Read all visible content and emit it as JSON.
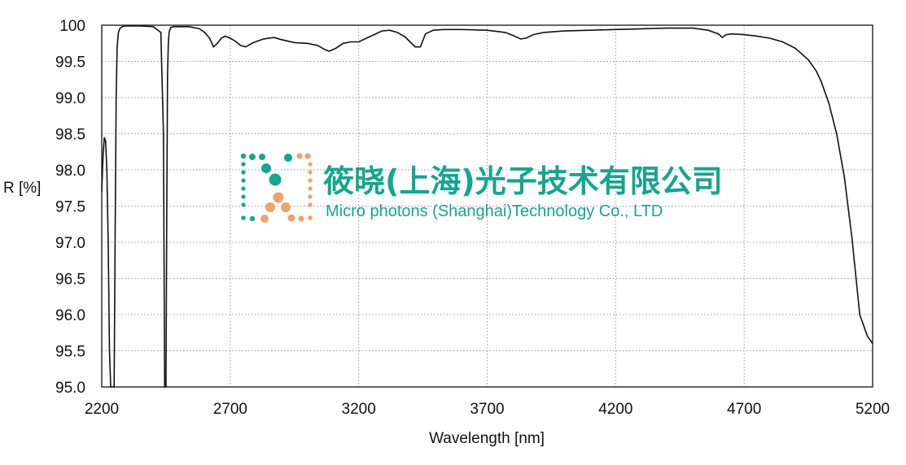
{
  "chart_data": {
    "type": "line",
    "xlabel": "Wavelength [nm]",
    "ylabel": "R [%]",
    "xlim": [
      2200,
      5200
    ],
    "ylim": [
      95.0,
      100
    ],
    "xticks": [
      "2200",
      "2700",
      "3200",
      "3700",
      "4200",
      "4700",
      "5200"
    ],
    "yticks": [
      "100",
      "99.5",
      "99.0",
      "98.5",
      "98.0",
      "97.5",
      "97.0",
      "96.5",
      "96.0",
      "95.5",
      "95.0"
    ],
    "grid": true,
    "series": [
      {
        "x": [
          2200,
          2205,
          2210,
          2215,
          2220,
          2225,
          2230,
          2235,
          2240,
          2245,
          2248,
          2252,
          2256,
          2260,
          2265,
          2270,
          2275,
          2280,
          2290,
          2300,
          2320,
          2350,
          2400,
          2430,
          2440,
          2445,
          2450,
          2453,
          2456,
          2459,
          2462,
          2466,
          2470,
          2480,
          2500,
          2540,
          2580,
          2600,
          2620,
          2635,
          2650,
          2665,
          2680,
          2700,
          2720,
          2740,
          2760,
          2790,
          2830,
          2870,
          2900,
          2950,
          3000,
          3040,
          3070,
          3085,
          3110,
          3140,
          3170,
          3200,
          3230,
          3260,
          3290,
          3320,
          3350,
          3380,
          3400,
          3420,
          3440,
          3460,
          3490,
          3530,
          3600,
          3700,
          3770,
          3800,
          3830,
          3850,
          3880,
          3920,
          4000,
          4100,
          4200,
          4300,
          4400,
          4500,
          4560,
          4600,
          4615,
          4630,
          4650,
          4700,
          4750,
          4800,
          4850,
          4900,
          4950,
          4980,
          5000,
          5030,
          5060,
          5090,
          5120,
          5150,
          5170,
          5180,
          5190,
          5200
        ],
        "y": [
          97.7,
          98.2,
          98.45,
          98.4,
          98.0,
          97.0,
          95.5,
          95.0,
          95.0,
          95.0,
          95.0,
          97.0,
          99.0,
          99.7,
          99.9,
          99.95,
          99.97,
          99.98,
          99.99,
          99.99,
          99.99,
          99.99,
          99.98,
          99.9,
          98.5,
          95.0,
          95.0,
          97.5,
          99.3,
          99.75,
          99.9,
          99.95,
          99.97,
          99.98,
          99.98,
          99.98,
          99.95,
          99.9,
          99.82,
          99.7,
          99.75,
          99.82,
          99.85,
          99.82,
          99.78,
          99.72,
          99.7,
          99.76,
          99.81,
          99.83,
          99.8,
          99.76,
          99.75,
          99.72,
          99.66,
          99.64,
          99.68,
          99.75,
          99.77,
          99.77,
          99.82,
          99.87,
          99.92,
          99.93,
          99.9,
          99.84,
          99.77,
          99.7,
          99.7,
          99.88,
          99.93,
          99.94,
          99.94,
          99.93,
          99.9,
          99.86,
          99.81,
          99.82,
          99.87,
          99.9,
          99.92,
          99.93,
          99.94,
          99.95,
          99.96,
          99.96,
          99.93,
          99.88,
          99.83,
          99.87,
          99.88,
          99.87,
          99.85,
          99.82,
          99.77,
          99.68,
          99.52,
          99.37,
          99.22,
          98.92,
          98.5,
          97.9,
          97.05,
          96.0,
          95.8,
          95.7,
          95.65,
          95.6
        ]
      }
    ]
  },
  "watermark": {
    "cn": "筱晓(上海)光子技术有限公司",
    "en": "Micro photons (Shanghai)Technology Co., LTD",
    "colors": {
      "teal": "#16a58f",
      "orange": "#f0a16c"
    }
  }
}
